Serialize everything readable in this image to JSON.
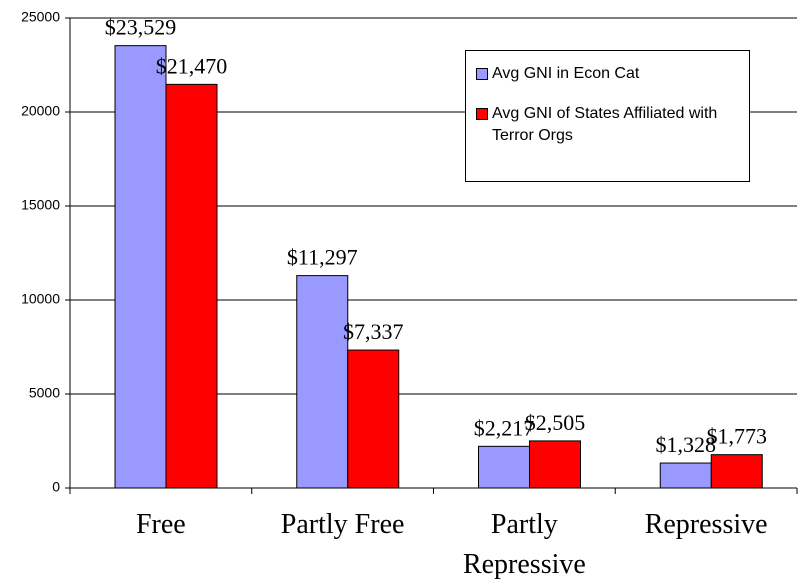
{
  "chart_data": {
    "type": "bar",
    "categories": [
      "Free",
      "Partly Free",
      "Partly Repressive",
      "Repressive"
    ],
    "series": [
      {
        "name": "Avg GNI in Econ Cat",
        "color": "#9999ff",
        "values": [
          23529,
          11297,
          2217,
          1328
        ],
        "value_labels": [
          "$23,529",
          "$11,297",
          "$2,217",
          "$1,328"
        ]
      },
      {
        "name": "Avg GNI of States Affiliated with Terror Orgs",
        "color": "#ff0000",
        "values": [
          21470,
          7337,
          2505,
          1773
        ],
        "value_labels": [
          "$21,470",
          "$7,337",
          "$2,505",
          "$1,773"
        ]
      }
    ],
    "ylim": [
      0,
      25000
    ],
    "yticks": [
      0,
      5000,
      10000,
      15000,
      20000,
      25000
    ],
    "grid": true,
    "legend": "upper right"
  }
}
